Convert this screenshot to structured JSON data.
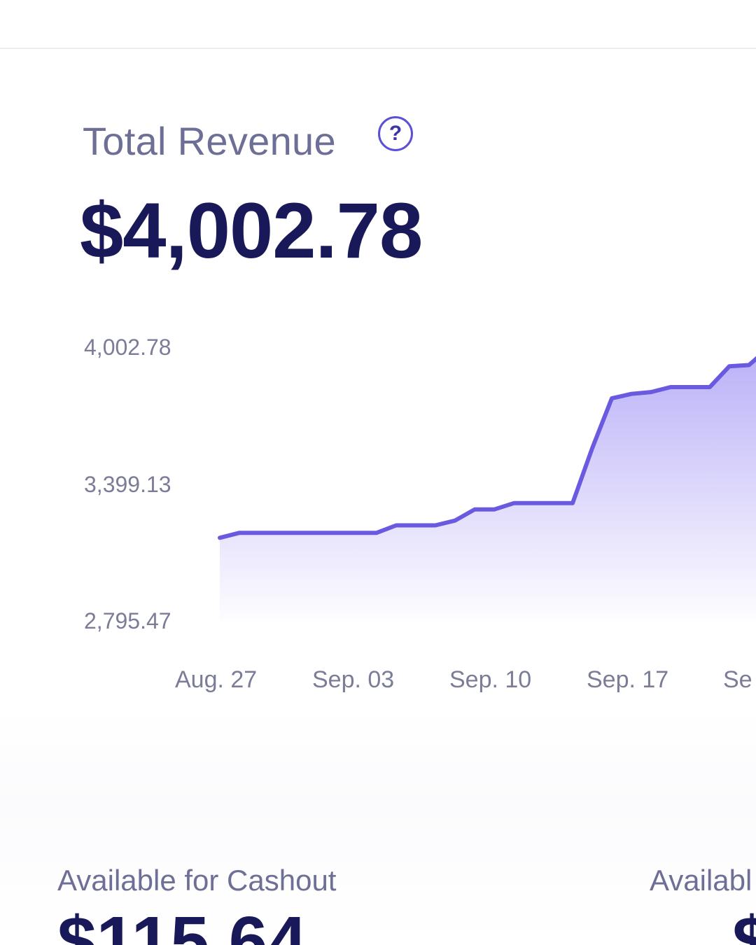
{
  "revenue": {
    "title": "Total Revenue",
    "help_icon": "question-circle-icon",
    "help_glyph": "?",
    "total": "$4,002.78"
  },
  "chart_data": {
    "type": "area",
    "title": "",
    "xlabel": "",
    "ylabel": "",
    "y_tick_labels": [
      "4,002.78",
      "3,399.13",
      "2,795.47"
    ],
    "x_tick_labels": [
      "Aug. 27",
      "Sep. 03",
      "Sep. 10",
      "Sep. 17",
      "Se"
    ],
    "ylim": [
      2795.47,
      4002.78
    ],
    "grid": false,
    "series": [
      {
        "color": "#6a5ae0",
        "fill_color": "#b6acf7",
        "points": [
          {
            "x": "2023-08-27",
            "y": 3165
          },
          {
            "x": "2023-08-28",
            "y": 3187
          },
          {
            "x": "2023-08-29",
            "y": 3187
          },
          {
            "x": "2023-08-31",
            "y": 3187
          },
          {
            "x": "2023-09-02",
            "y": 3187
          },
          {
            "x": "2023-09-04",
            "y": 3187
          },
          {
            "x": "2023-09-05",
            "y": 3220
          },
          {
            "x": "2023-09-07",
            "y": 3220
          },
          {
            "x": "2023-09-08",
            "y": 3241
          },
          {
            "x": "2023-09-09",
            "y": 3290
          },
          {
            "x": "2023-09-10",
            "y": 3290
          },
          {
            "x": "2023-09-11",
            "y": 3318
          },
          {
            "x": "2023-09-13",
            "y": 3318
          },
          {
            "x": "2023-09-14",
            "y": 3318
          },
          {
            "x": "2023-09-15",
            "y": 3560
          },
          {
            "x": "2023-09-16",
            "y": 3780
          },
          {
            "x": "2023-09-17",
            "y": 3800
          },
          {
            "x": "2023-09-18",
            "y": 3808
          },
          {
            "x": "2023-09-19",
            "y": 3830
          },
          {
            "x": "2023-09-21",
            "y": 3830
          },
          {
            "x": "2023-09-22",
            "y": 3922
          },
          {
            "x": "2023-09-23",
            "y": 3927
          },
          {
            "x": "2023-09-24",
            "y": 4002.78
          }
        ]
      }
    ]
  },
  "cashout": {
    "label": "Available for Cashout",
    "value": "$115.64"
  },
  "available": {
    "label": "Availabl",
    "value": "$"
  }
}
